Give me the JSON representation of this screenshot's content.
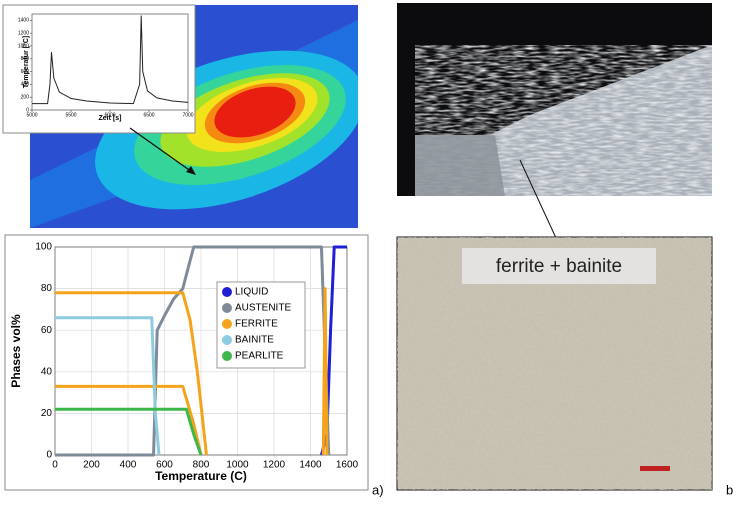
{
  "chart_data": [
    {
      "type": "line",
      "ylabel": "Temperatur [°C]",
      "xlabel": "Zeit [s]",
      "color": "#222222",
      "x": [
        5000,
        5200,
        5230,
        5250,
        5280,
        5350,
        5500,
        5700,
        6000,
        6300,
        6380,
        6400,
        6420,
        6480,
        6600,
        6800,
        7000
      ],
      "values": [
        100,
        100,
        400,
        900,
        500,
        280,
        180,
        140,
        110,
        100,
        400,
        1470,
        600,
        300,
        190,
        140,
        120
      ],
      "xlim": [
        5000,
        7000
      ],
      "xticks": [
        5000,
        5500,
        6000,
        6500,
        7000
      ],
      "ylim": [
        0,
        1500
      ],
      "yticks": [
        0,
        200,
        400,
        600,
        800,
        1000,
        1200,
        1400
      ]
    },
    {
      "type": "line",
      "xlabel": "Temperature (C)",
      "ylabel": "Phases vol%",
      "xlim": [
        0,
        1600
      ],
      "xticks": [
        0,
        200,
        400,
        600,
        800,
        1000,
        1200,
        1400,
        1600
      ],
      "ylim": [
        0,
        100
      ],
      "yticks": [
        0,
        20,
        40,
        60,
        80,
        100
      ],
      "legend": "center",
      "series": [
        {
          "name": "LIQUID",
          "color": "#1f1fd6",
          "x": [
            1460,
            1490,
            1510,
            1530,
            1600
          ],
          "values": [
            0,
            10,
            60,
            100,
            100
          ]
        },
        {
          "name": "AUSTENITE",
          "color": "#7f8a99",
          "x": [
            0,
            540,
            550,
            560,
            600,
            650,
            700,
            730,
            760,
            1460,
            1480,
            1500
          ],
          "values": [
            0,
            0,
            30,
            60,
            67,
            75,
            80,
            90,
            100,
            100,
            50,
            0
          ]
        },
        {
          "name": "FERRITE",
          "color": "#f5a31a",
          "x": [
            0,
            700,
            740,
            780,
            830,
            830,
            0,
            700,
            760,
            800,
            800,
            1470,
            1480,
            1490
          ],
          "values": [
            78,
            78,
            65,
            40,
            0,
            null,
            33,
            33,
            15,
            0,
            null,
            0,
            80,
            0
          ]
        },
        {
          "name": "BAINITE",
          "color": "#8ccbe0",
          "x": [
            0,
            530,
            550,
            570
          ],
          "values": [
            66,
            66,
            20,
            0
          ]
        },
        {
          "name": "PEARLITE",
          "color": "#3cb84a",
          "x": [
            0,
            720,
            760,
            800
          ],
          "values": [
            22,
            22,
            10,
            0
          ]
        }
      ]
    }
  ],
  "labels": {
    "panel_a": "a)",
    "panel_b": "b",
    "micrograph_label": "ferrite + bainite"
  }
}
